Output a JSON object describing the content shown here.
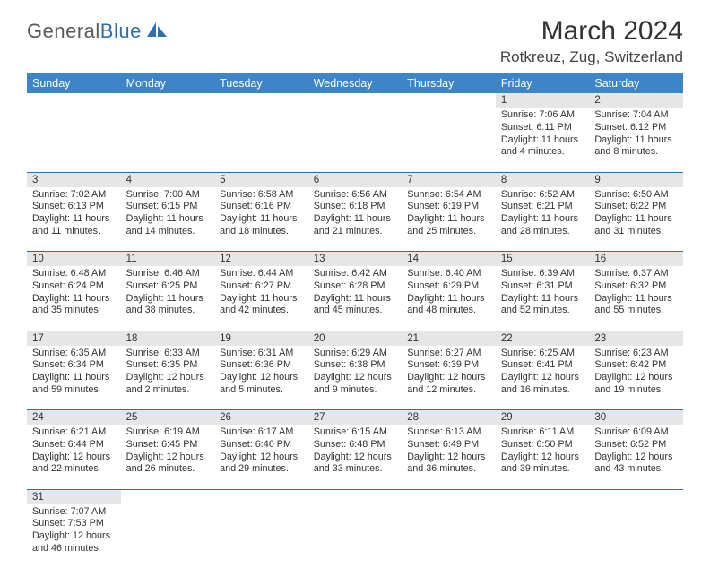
{
  "logo": {
    "text1": "General",
    "text2": "Blue"
  },
  "title": "March 2024",
  "location": "Rotkreuz, Zug, Switzerland",
  "colors": {
    "header_bg": "#3d85c6",
    "header_text": "#ffffff",
    "daynum_bg": "#e6e6e6",
    "row_border": "#2f6fb0",
    "logo_gray": "#5a5a5a",
    "logo_blue": "#2f6fb0"
  },
  "weekdays": [
    "Sunday",
    "Monday",
    "Tuesday",
    "Wednesday",
    "Thursday",
    "Friday",
    "Saturday"
  ],
  "weeks": [
    [
      null,
      null,
      null,
      null,
      null,
      {
        "n": "1",
        "sr": "Sunrise: 7:06 AM",
        "ss": "Sunset: 6:11 PM",
        "dl": "Daylight: 11 hours and 4 minutes."
      },
      {
        "n": "2",
        "sr": "Sunrise: 7:04 AM",
        "ss": "Sunset: 6:12 PM",
        "dl": "Daylight: 11 hours and 8 minutes."
      }
    ],
    [
      {
        "n": "3",
        "sr": "Sunrise: 7:02 AM",
        "ss": "Sunset: 6:13 PM",
        "dl": "Daylight: 11 hours and 11 minutes."
      },
      {
        "n": "4",
        "sr": "Sunrise: 7:00 AM",
        "ss": "Sunset: 6:15 PM",
        "dl": "Daylight: 11 hours and 14 minutes."
      },
      {
        "n": "5",
        "sr": "Sunrise: 6:58 AM",
        "ss": "Sunset: 6:16 PM",
        "dl": "Daylight: 11 hours and 18 minutes."
      },
      {
        "n": "6",
        "sr": "Sunrise: 6:56 AM",
        "ss": "Sunset: 6:18 PM",
        "dl": "Daylight: 11 hours and 21 minutes."
      },
      {
        "n": "7",
        "sr": "Sunrise: 6:54 AM",
        "ss": "Sunset: 6:19 PM",
        "dl": "Daylight: 11 hours and 25 minutes."
      },
      {
        "n": "8",
        "sr": "Sunrise: 6:52 AM",
        "ss": "Sunset: 6:21 PM",
        "dl": "Daylight: 11 hours and 28 minutes."
      },
      {
        "n": "9",
        "sr": "Sunrise: 6:50 AM",
        "ss": "Sunset: 6:22 PM",
        "dl": "Daylight: 11 hours and 31 minutes."
      }
    ],
    [
      {
        "n": "10",
        "sr": "Sunrise: 6:48 AM",
        "ss": "Sunset: 6:24 PM",
        "dl": "Daylight: 11 hours and 35 minutes."
      },
      {
        "n": "11",
        "sr": "Sunrise: 6:46 AM",
        "ss": "Sunset: 6:25 PM",
        "dl": "Daylight: 11 hours and 38 minutes."
      },
      {
        "n": "12",
        "sr": "Sunrise: 6:44 AM",
        "ss": "Sunset: 6:27 PM",
        "dl": "Daylight: 11 hours and 42 minutes."
      },
      {
        "n": "13",
        "sr": "Sunrise: 6:42 AM",
        "ss": "Sunset: 6:28 PM",
        "dl": "Daylight: 11 hours and 45 minutes."
      },
      {
        "n": "14",
        "sr": "Sunrise: 6:40 AM",
        "ss": "Sunset: 6:29 PM",
        "dl": "Daylight: 11 hours and 48 minutes."
      },
      {
        "n": "15",
        "sr": "Sunrise: 6:39 AM",
        "ss": "Sunset: 6:31 PM",
        "dl": "Daylight: 11 hours and 52 minutes."
      },
      {
        "n": "16",
        "sr": "Sunrise: 6:37 AM",
        "ss": "Sunset: 6:32 PM",
        "dl": "Daylight: 11 hours and 55 minutes."
      }
    ],
    [
      {
        "n": "17",
        "sr": "Sunrise: 6:35 AM",
        "ss": "Sunset: 6:34 PM",
        "dl": "Daylight: 11 hours and 59 minutes."
      },
      {
        "n": "18",
        "sr": "Sunrise: 6:33 AM",
        "ss": "Sunset: 6:35 PM",
        "dl": "Daylight: 12 hours and 2 minutes."
      },
      {
        "n": "19",
        "sr": "Sunrise: 6:31 AM",
        "ss": "Sunset: 6:36 PM",
        "dl": "Daylight: 12 hours and 5 minutes."
      },
      {
        "n": "20",
        "sr": "Sunrise: 6:29 AM",
        "ss": "Sunset: 6:38 PM",
        "dl": "Daylight: 12 hours and 9 minutes."
      },
      {
        "n": "21",
        "sr": "Sunrise: 6:27 AM",
        "ss": "Sunset: 6:39 PM",
        "dl": "Daylight: 12 hours and 12 minutes."
      },
      {
        "n": "22",
        "sr": "Sunrise: 6:25 AM",
        "ss": "Sunset: 6:41 PM",
        "dl": "Daylight: 12 hours and 16 minutes."
      },
      {
        "n": "23",
        "sr": "Sunrise: 6:23 AM",
        "ss": "Sunset: 6:42 PM",
        "dl": "Daylight: 12 hours and 19 minutes."
      }
    ],
    [
      {
        "n": "24",
        "sr": "Sunrise: 6:21 AM",
        "ss": "Sunset: 6:44 PM",
        "dl": "Daylight: 12 hours and 22 minutes."
      },
      {
        "n": "25",
        "sr": "Sunrise: 6:19 AM",
        "ss": "Sunset: 6:45 PM",
        "dl": "Daylight: 12 hours and 26 minutes."
      },
      {
        "n": "26",
        "sr": "Sunrise: 6:17 AM",
        "ss": "Sunset: 6:46 PM",
        "dl": "Daylight: 12 hours and 29 minutes."
      },
      {
        "n": "27",
        "sr": "Sunrise: 6:15 AM",
        "ss": "Sunset: 6:48 PM",
        "dl": "Daylight: 12 hours and 33 minutes."
      },
      {
        "n": "28",
        "sr": "Sunrise: 6:13 AM",
        "ss": "Sunset: 6:49 PM",
        "dl": "Daylight: 12 hours and 36 minutes."
      },
      {
        "n": "29",
        "sr": "Sunrise: 6:11 AM",
        "ss": "Sunset: 6:50 PM",
        "dl": "Daylight: 12 hours and 39 minutes."
      },
      {
        "n": "30",
        "sr": "Sunrise: 6:09 AM",
        "ss": "Sunset: 6:52 PM",
        "dl": "Daylight: 12 hours and 43 minutes."
      }
    ],
    [
      {
        "n": "31",
        "sr": "Sunrise: 7:07 AM",
        "ss": "Sunset: 7:53 PM",
        "dl": "Daylight: 12 hours and 46 minutes."
      },
      null,
      null,
      null,
      null,
      null,
      null
    ]
  ]
}
